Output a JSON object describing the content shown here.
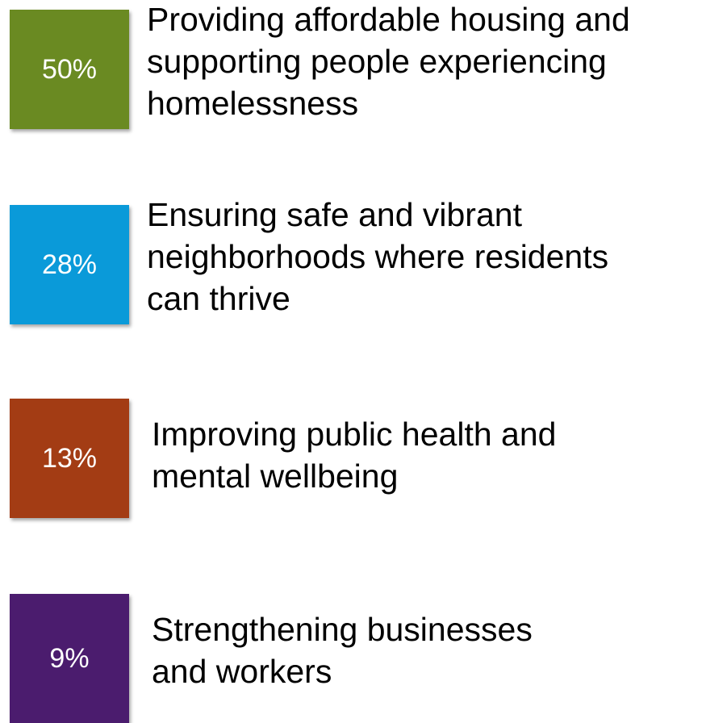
{
  "items": [
    {
      "percent": "50%",
      "color": "#6a8a22",
      "lines": [
        "Providing affordable housing and",
        "supporting people experiencing",
        "homelessness"
      ]
    },
    {
      "percent": "28%",
      "color": "#0a9ad9",
      "lines": [
        "Ensuring safe and vibrant",
        "neighborhoods where residents",
        "can thrive"
      ]
    },
    {
      "percent": "13%",
      "color": "#a33c14",
      "lines": [
        "Improving public health and",
        "mental wellbeing"
      ]
    },
    {
      "percent": "9%",
      "color": "#4b1c6e",
      "lines": [
        "Strengthening businesses",
        "and workers"
      ]
    }
  ]
}
